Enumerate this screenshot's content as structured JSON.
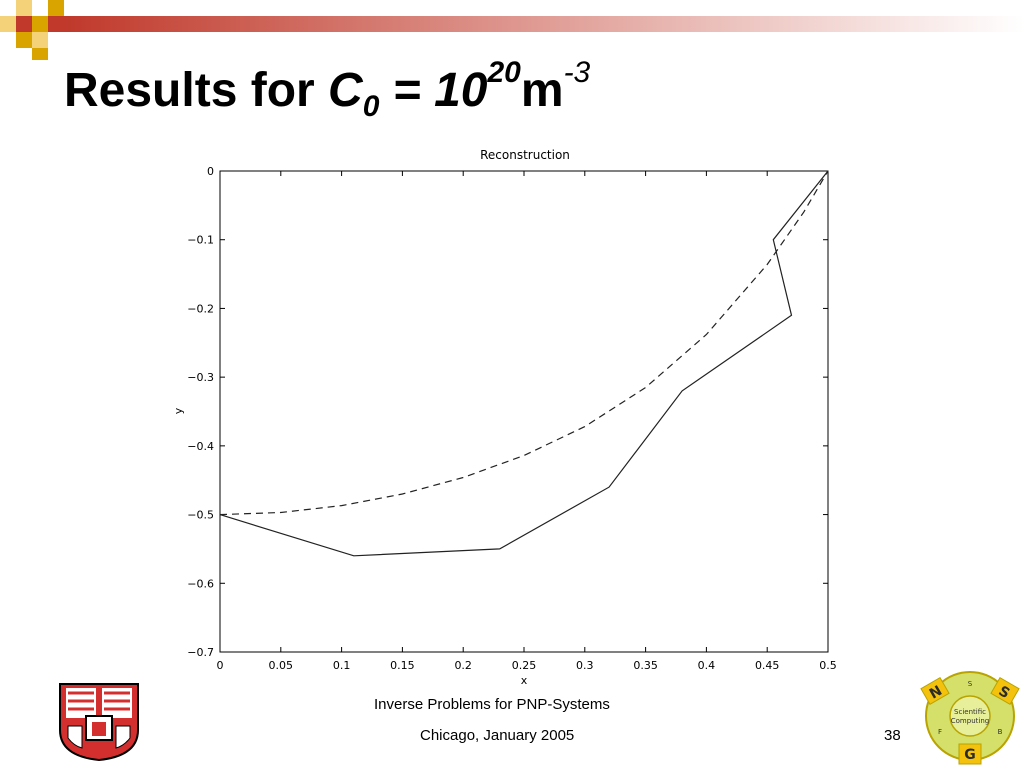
{
  "slide": {
    "title": {
      "prefix": "Results for ",
      "var": "C",
      "var_sub": "0",
      "equals": " = 10",
      "exp": "20",
      "unit": "m",
      "unit_exp": "-3"
    },
    "footer": {
      "title": "Inverse Problems for PNP-Systems",
      "date": "Chicago, January 2005",
      "page": "38"
    },
    "logo": {
      "letters": [
        "N",
        "S",
        "G"
      ],
      "small_letters": [
        "S",
        "F",
        "B"
      ],
      "center_text": [
        "Scientific",
        "Computing"
      ]
    },
    "colors": {
      "accent_red": "#c0392b",
      "accent_gold": "#d9a400",
      "logo_fill": "#d4e06a"
    }
  },
  "chart_data": {
    "type": "line",
    "title": "Reconstruction",
    "xlabel": "x",
    "ylabel": "y",
    "xlim": [
      0,
      0.5
    ],
    "ylim": [
      -0.7,
      0
    ],
    "x_ticks": [
      0,
      0.05,
      0.1,
      0.15,
      0.2,
      0.25,
      0.3,
      0.35,
      0.4,
      0.45,
      0.5
    ],
    "x_tick_labels": [
      "0",
      "0.05",
      "0.1",
      "0.15",
      "0.2",
      "0.25",
      "0.3",
      "0.35",
      "0.4",
      "0.45",
      "0.5"
    ],
    "y_ticks": [
      0,
      -0.1,
      -0.2,
      -0.3,
      -0.4,
      -0.5,
      -0.6,
      -0.7
    ],
    "y_tick_labels": [
      "0",
      "−0.1",
      "−0.2",
      "−0.3",
      "−0.4",
      "−0.5",
      "−0.6",
      "−0.7"
    ],
    "grid": false,
    "series": [
      {
        "style": "solid",
        "x": [
          0,
          0.11,
          0.23,
          0.32,
          0.38,
          0.47,
          0.455,
          0.5
        ],
        "y": [
          -0.5,
          -0.56,
          -0.55,
          -0.46,
          -0.32,
          -0.21,
          -0.1,
          0
        ]
      },
      {
        "style": "dashed",
        "x": [
          0,
          0.05,
          0.1,
          0.15,
          0.2,
          0.25,
          0.3,
          0.35,
          0.4,
          0.45,
          0.48,
          0.5
        ],
        "y": [
          -0.5,
          -0.497,
          -0.487,
          -0.47,
          -0.446,
          -0.414,
          -0.372,
          -0.315,
          -0.238,
          -0.136,
          -0.06,
          0
        ]
      }
    ]
  }
}
